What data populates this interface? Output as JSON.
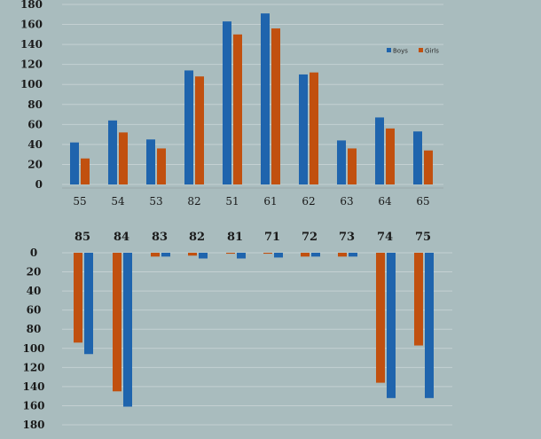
{
  "colors": {
    "boys": "#1f64ad",
    "girls": "#c1500f",
    "grid": "#c4d0d2",
    "axis": "#9aa8aa"
  },
  "chart_data": [
    {
      "type": "bar",
      "categories": [
        "55",
        "54",
        "53",
        "82",
        "51",
        "61",
        "62",
        "63",
        "64",
        "65"
      ],
      "series": [
        {
          "name": "Boys",
          "values": [
            42,
            64,
            45,
            114,
            163,
            171,
            110,
            44,
            67,
            53
          ]
        },
        {
          "name": "Girls",
          "values": [
            26,
            52,
            36,
            108,
            150,
            156,
            112,
            36,
            56,
            34
          ]
        }
      ],
      "ylim": [
        0,
        180
      ],
      "yticks": [
        "0",
        "20",
        "40",
        "60",
        "80",
        "100",
        "120",
        "140",
        "160",
        "180"
      ],
      "grid": true,
      "legend": "top-right"
    },
    {
      "type": "bar",
      "orientation": "downward",
      "categories": [
        "85",
        "84",
        "83",
        "82",
        "81",
        "71",
        "72",
        "73",
        "74",
        "75"
      ],
      "series": [
        {
          "name": "Girls",
          "values": [
            94,
            145,
            4,
            3,
            1,
            1,
            4,
            4,
            136,
            97
          ]
        },
        {
          "name": "Boys",
          "values": [
            106,
            161,
            4,
            6,
            6,
            5,
            4,
            4,
            152,
            152
          ]
        }
      ],
      "ylim": [
        0,
        180
      ],
      "yticks": [
        "0",
        "20",
        "40",
        "60",
        "80",
        "100",
        "120",
        "140",
        "160",
        "180"
      ],
      "grid": true
    }
  ]
}
